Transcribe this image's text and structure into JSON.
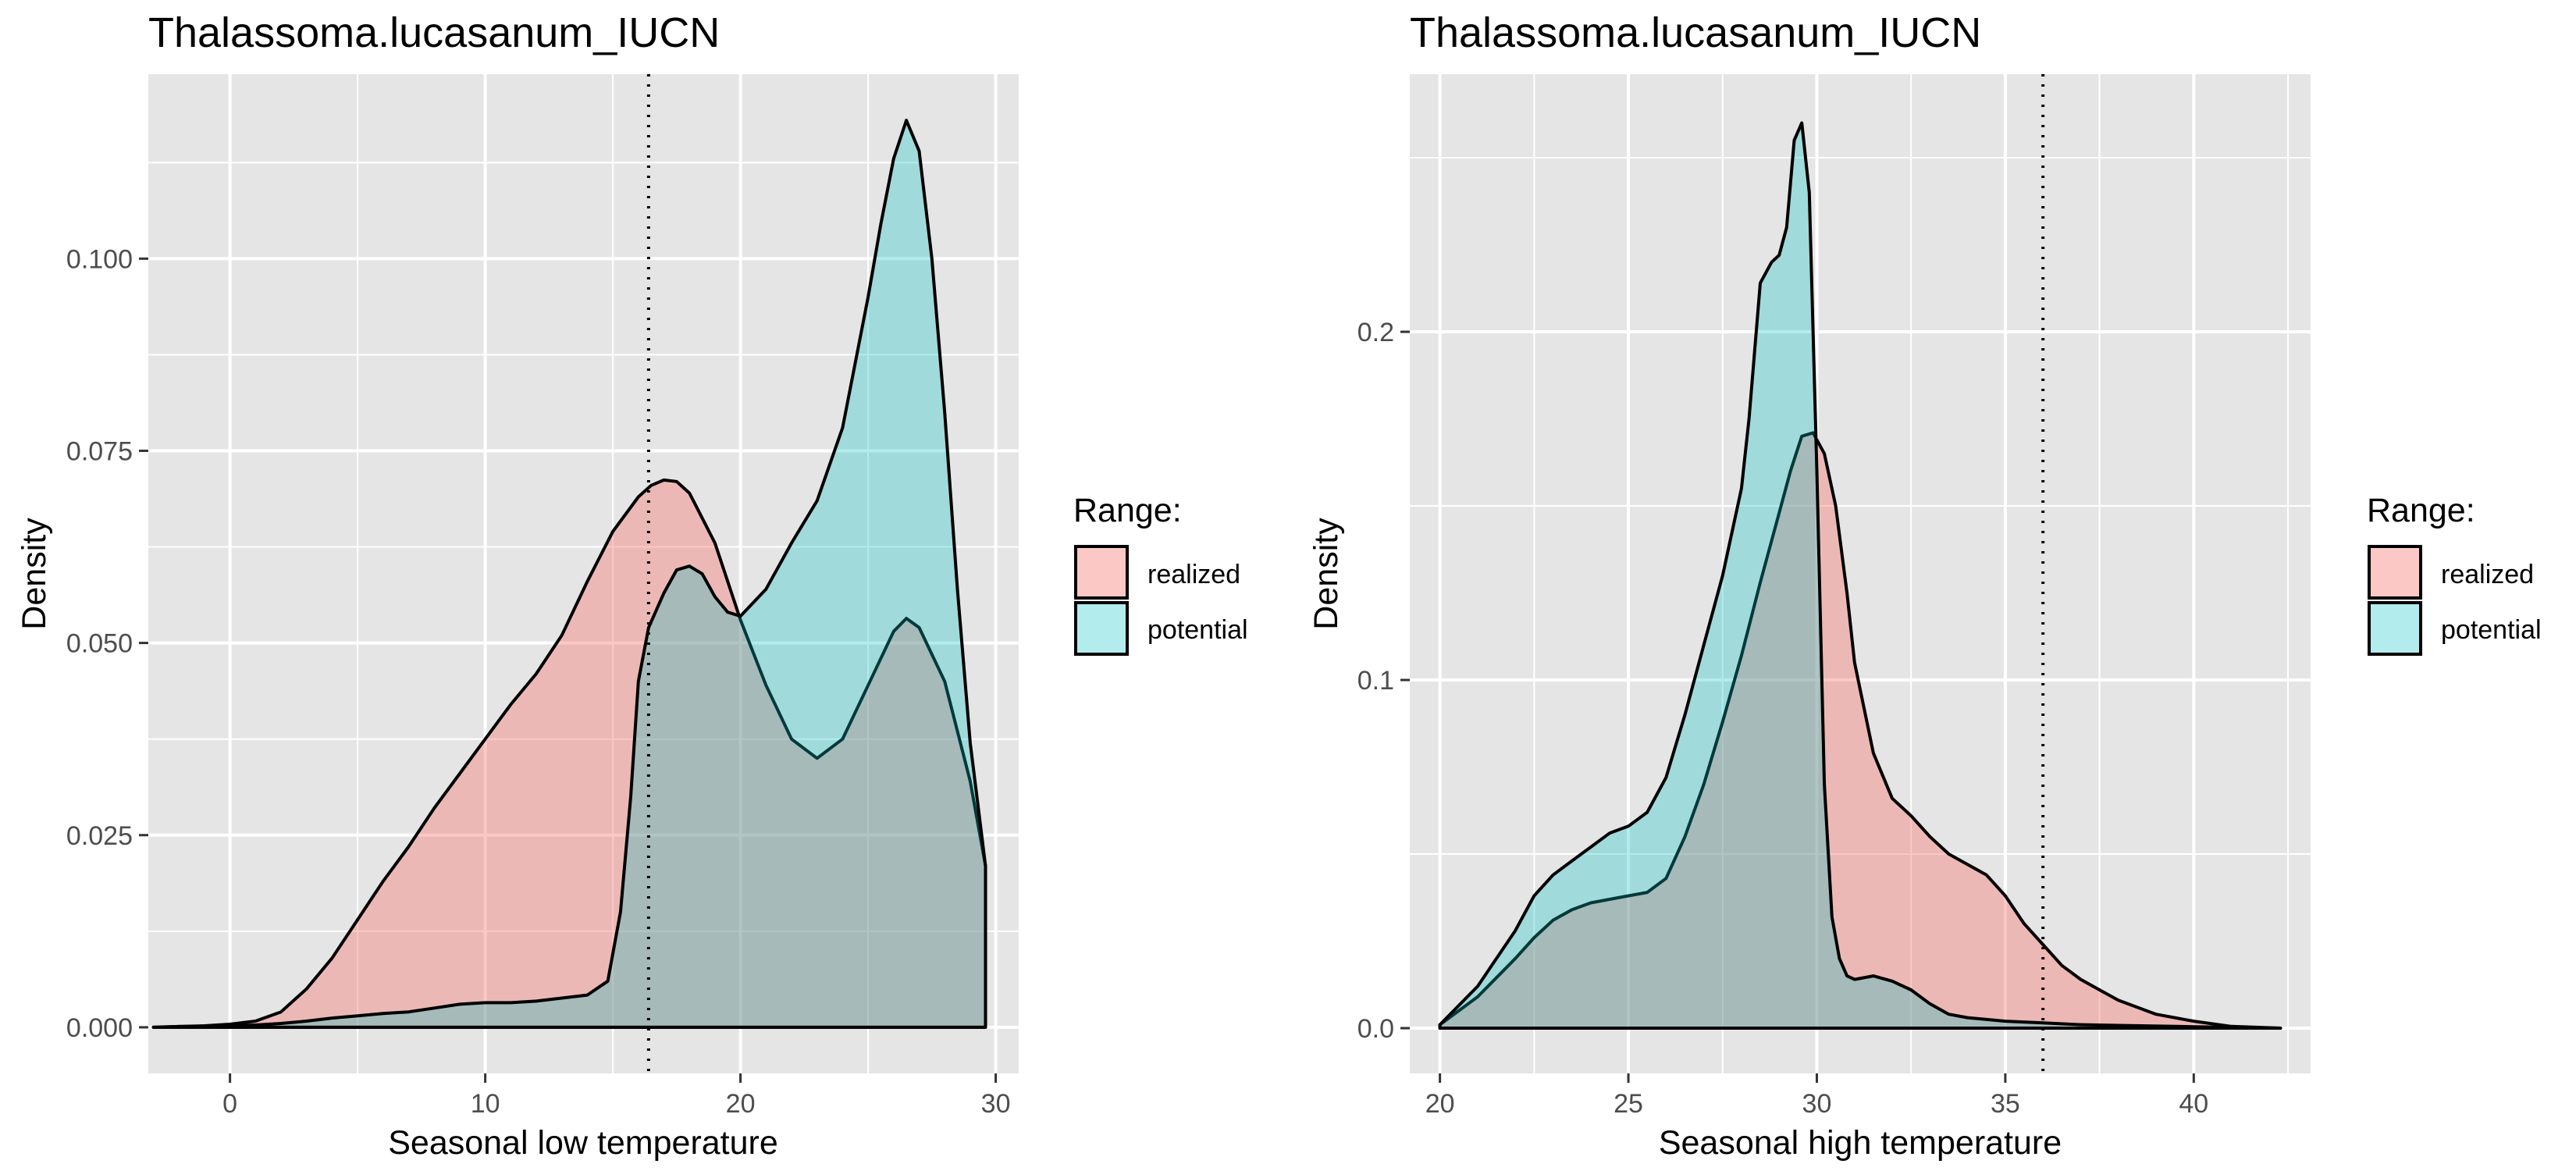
{
  "colors": {
    "realized": "#F8766D",
    "potential": "#00BFC4",
    "panel_background": "#E5E5E5",
    "grid": "#FFFFFF",
    "outline": "#000000"
  },
  "chart_data": [
    {
      "type": "area",
      "title": "Thalassoma.lucasanum_IUCN",
      "xlabel": "Seasonal low temperature",
      "ylabel": "Density",
      "xlim": [
        -3.2,
        30.9
      ],
      "ylim": [
        -0.006,
        0.124
      ],
      "xticks": [
        0,
        10,
        20,
        30
      ],
      "xtick_labels": [
        "0",
        "10",
        "20",
        "30"
      ],
      "yticks": [
        0,
        0.025,
        0.05,
        0.075,
        0.1
      ],
      "ytick_labels": [
        "0.000",
        "0.025",
        "0.050",
        "0.075",
        "0.100"
      ],
      "vline": 16.4,
      "legend": {
        "title": "Range:",
        "position": "right"
      },
      "grid": true,
      "series": [
        {
          "name": "realized",
          "x": [
            -3.0,
            -2.0,
            -1.0,
            0.0,
            1.0,
            2.0,
            3.0,
            4.0,
            5.0,
            6.0,
            7.0,
            8.0,
            9.0,
            10.0,
            11.0,
            12.0,
            13.0,
            14.0,
            15.0,
            16.0,
            16.5,
            17.0,
            17.5,
            18.0,
            19.0,
            20.0,
            21.0,
            22.0,
            23.0,
            24.0,
            25.0,
            26.0,
            26.5,
            27.0,
            28.0,
            29.0,
            29.6
          ],
          "y": [
            0.0,
            0.0001,
            0.0002,
            0.0004,
            0.0008,
            0.002,
            0.005,
            0.009,
            0.014,
            0.019,
            0.0235,
            0.0285,
            0.033,
            0.0375,
            0.042,
            0.046,
            0.051,
            0.058,
            0.0645,
            0.069,
            0.0705,
            0.0712,
            0.071,
            0.0695,
            0.063,
            0.053,
            0.0445,
            0.0375,
            0.035,
            0.0375,
            0.0445,
            0.0515,
            0.0532,
            0.052,
            0.045,
            0.032,
            0.021
          ]
        },
        {
          "name": "potential",
          "x": [
            -3.0,
            -2.0,
            -1.0,
            0.0,
            1.0,
            2.0,
            3.0,
            4.0,
            5.0,
            6.0,
            7.0,
            8.0,
            9.0,
            10.0,
            11.0,
            12.0,
            13.0,
            14.0,
            14.8,
            15.3,
            15.7,
            16.0,
            16.4,
            17.0,
            17.5,
            18.0,
            18.5,
            19.0,
            19.5,
            20.0,
            21.0,
            22.0,
            23.0,
            24.0,
            25.0,
            25.5,
            26.0,
            26.5,
            27.0,
            27.5,
            28.0,
            28.5,
            29.0,
            29.6
          ],
          "y": [
            0.0,
            0.0001,
            0.0001,
            0.0002,
            0.0003,
            0.0005,
            0.0008,
            0.0012,
            0.0015,
            0.0018,
            0.002,
            0.0025,
            0.003,
            0.0032,
            0.0032,
            0.0034,
            0.0038,
            0.0042,
            0.006,
            0.015,
            0.03,
            0.045,
            0.052,
            0.0565,
            0.0595,
            0.06,
            0.059,
            0.056,
            0.054,
            0.0535,
            0.057,
            0.063,
            0.0685,
            0.078,
            0.095,
            0.1045,
            0.113,
            0.118,
            0.114,
            0.1,
            0.08,
            0.057,
            0.037,
            0.021
          ]
        }
      ]
    },
    {
      "type": "area",
      "title": "Thalassoma.lucasanum_IUCN",
      "xlabel": "Seasonal high temperature",
      "ylabel": "Density",
      "xlim": [
        19.2,
        43.1
      ],
      "ylim": [
        -0.013,
        0.274
      ],
      "xticks": [
        20,
        25,
        30,
        35,
        40
      ],
      "xtick_labels": [
        "20",
        "25",
        "30",
        "35",
        "40"
      ],
      "yticks": [
        0,
        0.1,
        0.2
      ],
      "ytick_labels": [
        "0.0",
        "0.1",
        "0.2"
      ],
      "vline": 36.0,
      "legend": {
        "title": "Range:",
        "position": "right"
      },
      "grid": true,
      "series": [
        {
          "name": "realized",
          "x": [
            20.0,
            21.0,
            22.0,
            22.5,
            23.0,
            23.5,
            24.0,
            24.5,
            25.0,
            25.5,
            26.0,
            26.5,
            27.0,
            27.5,
            28.0,
            28.5,
            29.0,
            29.3,
            29.6,
            29.9,
            30.2,
            30.5,
            30.8,
            31.0,
            31.5,
            32.0,
            32.5,
            33.0,
            33.5,
            34.0,
            34.5,
            35.0,
            35.5,
            36.0,
            36.5,
            37.0,
            37.5,
            38.0,
            39.0,
            40.0,
            41.0,
            42.3
          ],
          "y": [
            0.001,
            0.009,
            0.02,
            0.026,
            0.031,
            0.034,
            0.036,
            0.037,
            0.038,
            0.039,
            0.043,
            0.055,
            0.07,
            0.088,
            0.107,
            0.128,
            0.148,
            0.16,
            0.17,
            0.171,
            0.165,
            0.15,
            0.125,
            0.105,
            0.079,
            0.066,
            0.061,
            0.055,
            0.05,
            0.047,
            0.044,
            0.038,
            0.03,
            0.024,
            0.018,
            0.014,
            0.011,
            0.008,
            0.004,
            0.002,
            0.0005,
            0.0
          ]
        },
        {
          "name": "potential",
          "x": [
            20.0,
            21.0,
            22.0,
            22.5,
            23.0,
            23.5,
            24.0,
            24.5,
            25.0,
            25.5,
            26.0,
            26.5,
            27.0,
            27.5,
            28.0,
            28.2,
            28.5,
            28.8,
            29.0,
            29.2,
            29.4,
            29.6,
            29.8,
            30.0,
            30.2,
            30.4,
            30.6,
            30.8,
            31.0,
            31.5,
            32.0,
            32.5,
            33.0,
            33.5,
            34.0,
            35.0,
            36.0,
            37.0,
            38.0,
            40.0,
            42.3
          ],
          "y": [
            0.001,
            0.012,
            0.028,
            0.038,
            0.044,
            0.048,
            0.052,
            0.056,
            0.058,
            0.062,
            0.072,
            0.09,
            0.11,
            0.13,
            0.155,
            0.175,
            0.214,
            0.22,
            0.222,
            0.23,
            0.255,
            0.26,
            0.24,
            0.16,
            0.07,
            0.032,
            0.02,
            0.015,
            0.014,
            0.015,
            0.0135,
            0.011,
            0.007,
            0.004,
            0.003,
            0.002,
            0.0015,
            0.001,
            0.0008,
            0.0004,
            0.0
          ]
        }
      ]
    }
  ]
}
